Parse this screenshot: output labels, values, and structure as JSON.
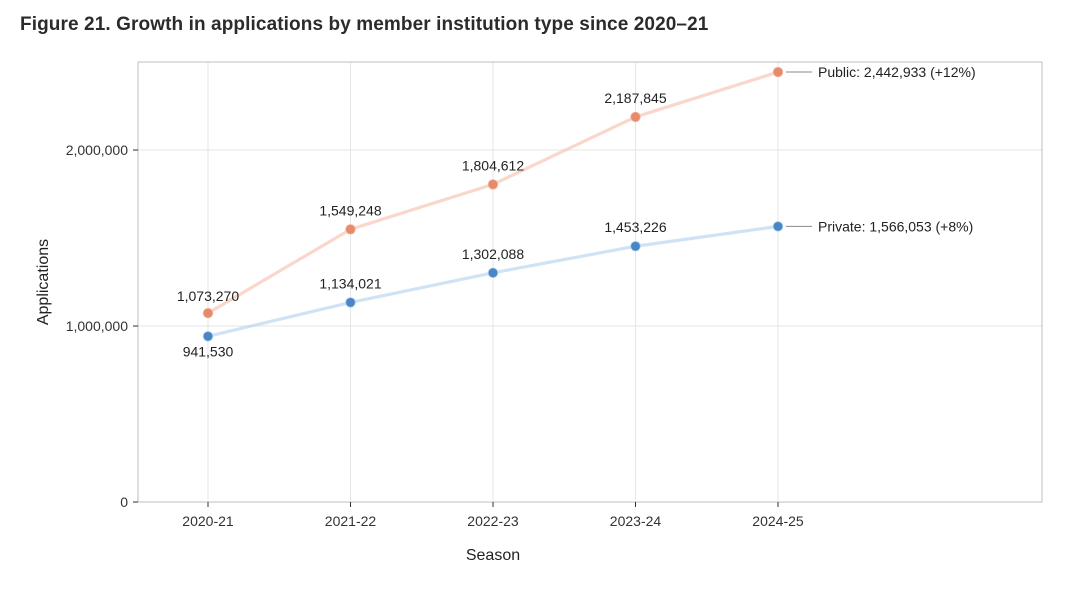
{
  "title": "Figure 21. Growth in applications by member institution type since 2020–21",
  "chart": {
    "type": "line",
    "x_title": "Season",
    "y_title": "Applications",
    "categories": [
      "2020-21",
      "2021-22",
      "2022-23",
      "2023-24",
      "2024-25"
    ],
    "ylim": [
      0,
      2500000
    ],
    "yticks": [
      0,
      1000000,
      2000000
    ],
    "ytick_labels": [
      "0",
      "1,000,000",
      "2,000,000"
    ],
    "background_color": "#ffffff",
    "grid_color": "#e6e6e6",
    "panel_border_color": "#bfbfbf",
    "line_width": 3.2,
    "marker_radius_light": 5.2,
    "marker_radius_dark": 4.4,
    "series": [
      {
        "name": "Public",
        "color_line": "#f4b7a0",
        "color_marker": "#e78a6b",
        "values": [
          1073270,
          1549248,
          1804612,
          2187845,
          2442933
        ],
        "value_labels": [
          "1,073,270",
          "1,549,248",
          "1,804,612",
          "2,187,845",
          ""
        ],
        "end_label": "Public: 2,442,933 (+12%)"
      },
      {
        "name": "Private",
        "color_line": "#a8cced",
        "color_marker": "#4a86c5",
        "values": [
          941530,
          1134021,
          1302088,
          1453226,
          1566053
        ],
        "value_labels": [
          "941,530",
          "1,134,021",
          "1,302,088",
          "1,453,226",
          ""
        ],
        "end_label": "Private: 1,566,053 (+8%)"
      }
    ],
    "title_fontsize": 19,
    "axis_title_fontsize": 16,
    "tick_fontsize": 14,
    "label_fontsize": 14
  }
}
